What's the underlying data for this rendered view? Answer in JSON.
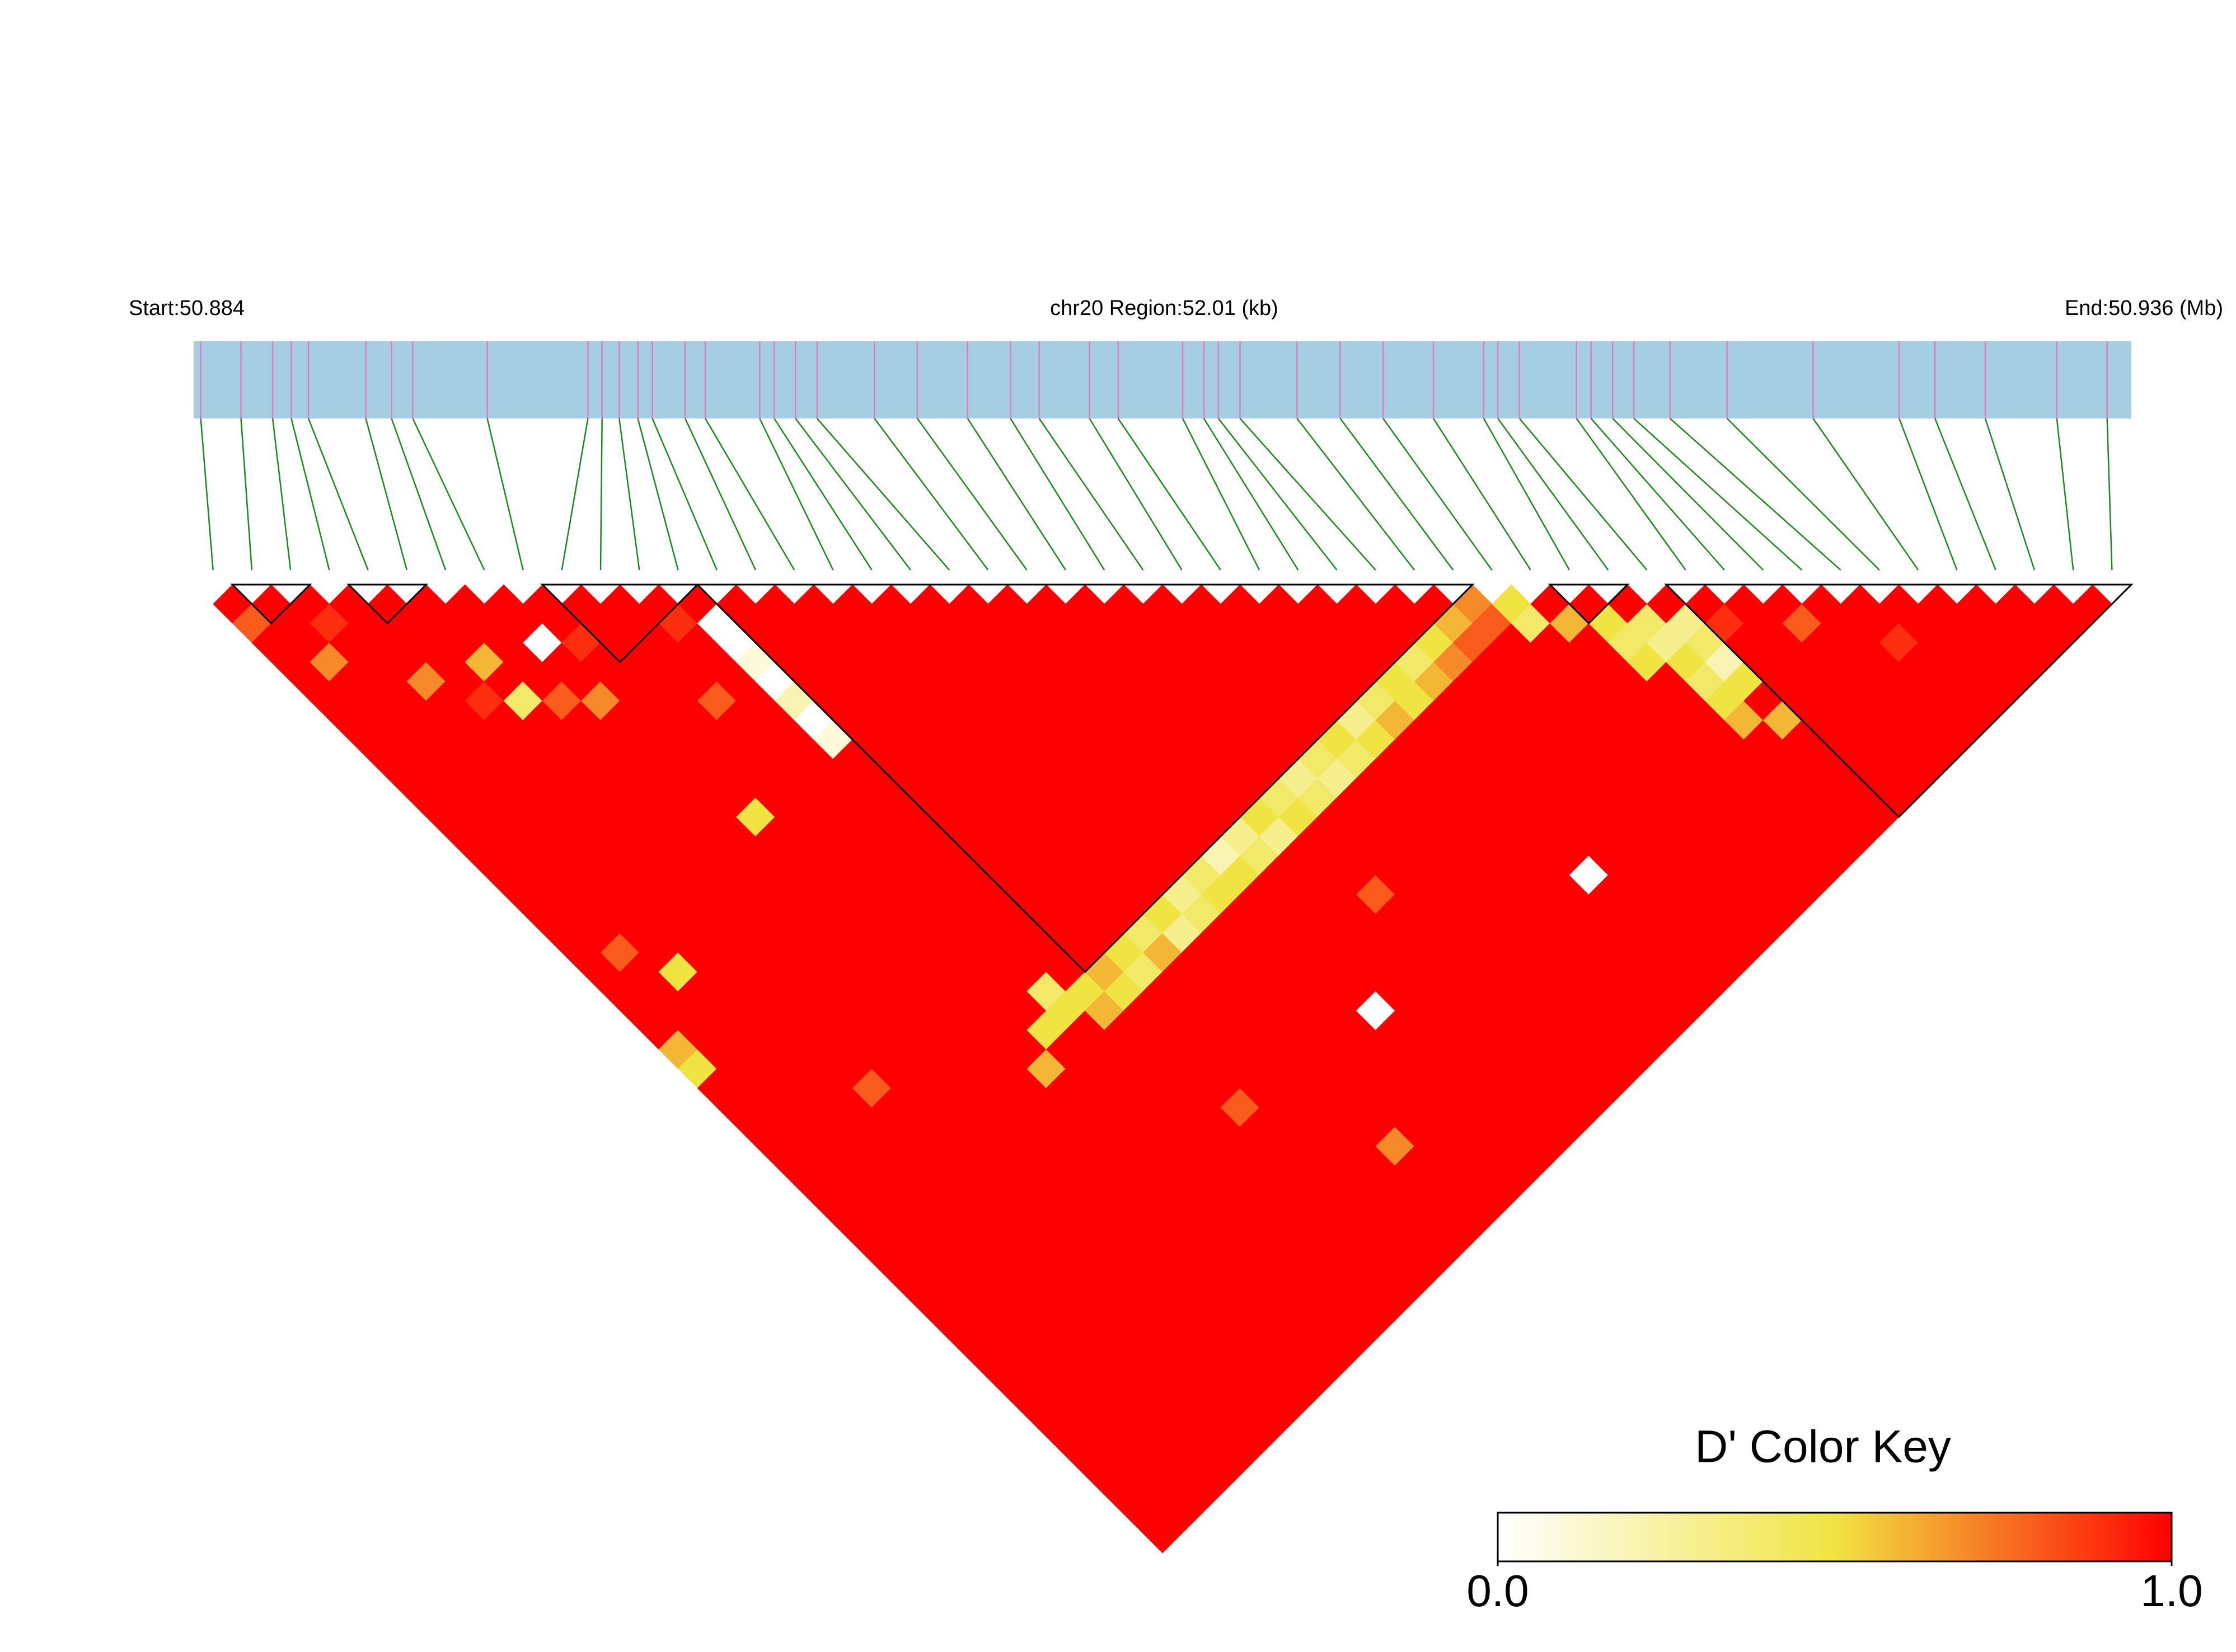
{
  "chart_data": {
    "type": "ld_heatmap",
    "start_label": "Start:50.884",
    "region_label": "chr20 Region:52.01 (kb)",
    "end_label": "End:50.936 (Mb)",
    "xlim": [
      50.884,
      50.936
    ],
    "positions": [
      50.88419,
      50.88527,
      50.88612,
      50.88662,
      50.88708,
      50.88862,
      50.88931,
      50.88988,
      50.89188,
      50.89458,
      50.89496,
      50.89542,
      50.89592,
      50.89631,
      50.89719,
      50.89773,
      50.89919,
      50.89958,
      50.90015,
      50.90073,
      50.90227,
      50.90342,
      50.90477,
      50.90592,
      50.90669,
      50.90804,
      50.90881,
      50.91054,
      50.91111,
      50.9115,
      50.91208,
      50.91361,
      50.91477,
      50.91592,
      50.91727,
      50.91862,
      50.919,
      50.91958,
      50.92111,
      50.9215,
      50.92208,
      50.92265,
      50.92362,
      50.92515,
      50.92746,
      50.92977,
      50.93073,
      50.93208,
      50.934,
      50.93535
    ],
    "bar_color": "#a6cee3",
    "tick_color": "#e07bc0",
    "connector_color": "#1a8a1a",
    "blocks": [
      [
        1,
        2
      ],
      [
        4,
        5
      ],
      [
        9,
        12
      ],
      [
        13,
        32
      ],
      [
        35,
        36
      ],
      [
        38,
        49
      ]
    ],
    "dprime": [
      [
        1,
        0.8,
        1,
        1,
        1,
        1,
        1,
        1,
        1,
        1,
        1,
        1,
        1,
        1,
        1,
        1,
        1,
        1,
        1,
        1,
        1,
        1,
        1,
        0.6,
        0.5,
        1,
        1,
        1,
        1,
        1,
        1,
        1,
        1,
        1,
        1,
        1,
        1,
        1,
        1,
        1,
        1,
        1,
        1,
        1,
        1,
        1,
        1,
        1,
        1
      ],
      [
        1,
        1,
        1,
        0.7,
        1,
        1,
        1,
        1,
        1,
        1,
        1,
        1,
        1,
        1,
        1,
        1,
        1,
        1,
        0.8,
        1,
        1,
        1,
        1,
        1,
        1,
        1,
        1,
        1,
        1,
        1,
        1,
        1,
        1,
        1,
        1,
        1,
        1,
        1,
        1,
        1,
        1,
        1,
        1,
        1,
        1,
        1,
        1,
        1
      ],
      [
        1,
        0.9,
        1,
        1,
        1,
        1,
        1,
        1,
        1,
        1,
        1,
        1,
        1,
        1,
        1,
        1,
        1,
        1,
        1,
        0.5,
        1,
        1,
        1,
        1,
        1,
        1,
        1,
        1,
        1,
        1,
        1,
        1,
        1,
        1,
        1,
        1,
        1,
        1,
        1,
        1,
        1,
        1,
        1,
        1,
        1,
        1,
        1
      ],
      [
        1,
        1,
        1,
        1,
        0.7,
        1,
        1,
        1,
        1,
        1,
        1,
        1,
        1,
        1,
        1,
        1,
        1,
        1,
        1,
        1,
        1,
        1,
        1,
        1,
        1,
        1,
        1,
        1,
        1,
        1,
        1,
        1,
        1,
        1,
        1,
        1,
        1,
        1,
        1,
        1,
        1,
        1,
        1,
        1,
        1,
        1
      ],
      [
        1,
        1,
        1,
        1,
        1,
        0.9,
        1,
        1,
        1,
        1,
        1,
        1,
        1,
        1,
        1,
        1,
        1,
        1,
        1,
        1,
        1,
        1,
        1,
        1,
        1,
        0.8,
        1,
        1,
        1,
        1,
        1,
        1,
        1,
        1,
        1,
        1,
        1,
        1,
        1,
        1,
        1,
        1,
        1,
        1,
        1
      ],
      [
        1,
        1,
        1,
        0.6,
        1,
        0.4,
        1,
        1,
        1,
        1,
        1,
        1,
        1,
        1,
        1,
        1,
        1,
        1,
        1,
        1,
        1,
        1,
        1,
        1,
        1,
        1,
        1,
        1,
        1,
        1,
        1,
        1,
        1,
        1,
        1,
        1,
        1,
        1,
        1,
        1,
        1,
        1,
        1,
        1
      ],
      [
        1,
        1,
        1,
        1,
        1,
        0.8,
        1,
        1,
        1,
        1,
        1,
        1,
        1,
        1,
        1,
        1,
        1,
        1,
        1,
        1,
        1,
        1,
        1,
        1,
        1,
        1,
        1,
        1,
        1,
        1,
        1,
        1,
        1,
        1,
        1,
        1,
        1,
        1,
        1,
        1,
        1,
        1,
        1
      ],
      [
        1,
        1,
        0,
        1,
        1,
        0.7,
        1,
        1,
        1,
        1,
        1,
        1,
        1,
        1,
        1,
        1,
        1,
        1,
        1,
        1,
        1,
        1,
        1,
        1,
        1,
        1,
        1,
        1,
        1,
        1,
        1,
        1,
        1,
        1,
        1,
        1,
        1,
        1,
        1,
        1,
        1,
        1
      ],
      [
        1,
        1,
        0.9,
        1,
        1,
        1,
        1,
        1,
        1,
        1,
        1,
        0.5,
        1,
        1,
        1,
        1,
        1,
        1,
        1,
        1,
        1,
        1,
        1,
        1,
        1,
        1,
        1,
        1,
        1,
        1,
        1,
        1,
        1,
        1,
        1,
        1,
        1,
        1,
        1,
        1,
        1
      ],
      [
        1,
        1,
        1,
        1,
        1,
        1,
        1,
        1,
        1,
        1,
        1,
        1,
        1,
        1,
        1,
        1,
        1,
        1,
        1,
        1,
        1,
        1,
        1,
        1,
        0.6,
        1,
        1,
        1,
        1,
        1,
        1,
        1,
        1,
        1,
        1,
        1,
        1,
        1,
        1,
        1
      ],
      [
        1,
        1,
        1,
        1,
        1,
        0.8,
        1,
        1,
        1,
        1,
        1,
        1,
        1,
        1,
        1,
        1,
        1,
        1,
        1,
        1,
        1,
        1,
        0.5,
        1,
        1,
        1,
        1,
        1,
        1,
        1,
        1,
        1,
        1,
        1,
        1,
        1,
        1,
        1,
        1
      ],
      [
        1,
        0.9,
        1,
        1,
        1,
        1,
        1,
        1,
        1,
        1,
        1,
        1,
        1,
        1,
        1,
        1,
        1,
        1,
        1,
        1,
        0.4,
        0.5,
        1,
        1,
        1,
        1,
        1,
        1,
        1,
        1,
        1,
        1,
        1,
        1,
        1,
        1,
        1,
        1
      ],
      [
        1,
        0,
        0,
        0.1,
        0,
        0.2,
        0,
        0.1,
        1,
        1,
        1,
        1,
        1,
        1,
        1,
        1,
        1,
        1,
        1,
        1,
        0.5,
        0.6,
        1,
        1,
        1,
        1,
        1,
        1,
        1,
        1,
        1,
        1,
        1,
        1,
        1,
        1,
        1
      ],
      [
        1,
        1,
        1,
        1,
        1,
        1,
        1,
        1,
        1,
        1,
        1,
        1,
        1,
        1,
        1,
        1,
        1,
        1,
        1,
        0.6,
        0.5,
        1,
        1,
        1,
        1,
        1,
        0.8,
        1,
        1,
        1,
        1,
        1,
        1,
        1,
        1,
        1
      ],
      [
        1,
        1,
        1,
        1,
        1,
        1,
        1,
        1,
        1,
        1,
        1,
        1,
        1,
        1,
        1,
        1,
        1,
        1,
        0.5,
        0.4,
        1,
        1,
        1,
        1,
        1,
        1,
        1,
        1,
        1,
        1,
        1,
        1,
        1,
        1,
        1
      ],
      [
        1,
        1,
        1,
        1,
        1,
        1,
        1,
        1,
        1,
        1,
        1,
        1,
        1,
        1,
        1,
        1,
        1,
        0.4,
        0.6,
        1,
        1,
        1,
        1,
        1,
        1,
        1,
        1,
        1,
        1,
        1,
        1,
        1,
        1,
        1
      ],
      [
        1,
        1,
        1,
        1,
        1,
        1,
        1,
        1,
        1,
        1,
        1,
        1,
        1,
        1,
        1,
        1,
        0.5,
        0.3,
        1,
        1,
        1,
        1,
        1,
        1,
        1,
        1,
        1,
        1,
        0.7,
        1,
        1,
        1,
        1
      ],
      [
        1,
        1,
        1,
        1,
        1,
        1,
        1,
        1,
        1,
        1,
        1,
        1,
        1,
        1,
        1,
        0.3,
        0.4,
        1,
        1,
        1,
        1,
        1,
        1,
        1,
        1,
        1,
        1,
        1,
        1,
        1,
        1,
        1
      ],
      [
        1,
        1,
        1,
        1,
        1,
        1,
        1,
        1,
        1,
        1,
        1,
        1,
        1,
        1,
        0.4,
        0.5,
        1,
        1,
        1,
        1,
        1,
        1,
        1,
        1,
        1,
        1,
        1,
        1,
        1,
        1,
        1
      ],
      [
        1,
        1,
        1,
        1,
        1,
        1,
        1,
        1,
        1,
        1,
        1,
        1,
        1,
        0.2,
        0.5,
        1,
        1,
        1,
        1,
        1,
        1,
        0,
        1,
        1,
        1,
        1,
        1,
        1,
        1,
        1
      ],
      [
        1,
        1,
        1,
        1,
        1,
        1,
        1,
        1,
        1,
        1,
        1,
        1,
        0.3,
        0.4,
        1,
        1,
        1,
        1,
        1,
        1,
        1,
        1,
        1,
        1,
        1,
        1,
        1,
        1,
        1
      ],
      [
        1,
        1,
        1,
        1,
        1,
        1,
        1,
        1,
        1,
        1,
        1,
        0.5,
        0.3,
        1,
        1,
        1,
        1,
        1,
        1,
        1,
        1,
        1,
        1,
        1,
        1,
        1,
        1,
        1
      ],
      [
        1,
        1,
        1,
        1,
        1,
        1,
        1,
        1,
        1,
        1,
        0.4,
        0.5,
        1,
        1,
        1,
        0.8,
        1,
        1,
        1,
        1,
        1,
        1,
        1,
        1,
        1,
        1,
        1
      ],
      [
        1,
        1,
        1,
        1,
        1,
        1,
        1,
        1,
        1,
        0.3,
        0.4,
        1,
        1,
        1,
        1,
        1,
        1,
        1,
        1,
        1,
        1,
        1,
        1,
        1,
        1,
        1
      ],
      [
        1,
        1,
        1,
        1,
        1,
        1,
        1,
        1,
        0.4,
        0.3,
        1,
        1,
        1,
        1,
        1,
        1,
        1,
        1,
        1,
        1,
        1,
        1,
        1,
        1,
        1
      ],
      [
        1,
        1,
        1,
        1,
        1,
        1,
        1,
        0.5,
        0.4,
        1,
        1,
        1,
        1,
        1,
        1,
        1,
        1,
        1,
        1,
        1,
        1,
        1,
        1,
        1
      ],
      [
        1,
        1,
        1,
        1,
        1,
        1,
        0.3,
        0.5,
        1,
        1,
        1,
        1,
        1,
        1,
        1,
        1,
        1,
        1,
        1,
        1,
        1,
        1,
        1
      ],
      [
        1,
        1,
        1,
        1,
        1,
        0.4,
        0.6,
        1,
        1,
        1,
        1,
        1,
        1,
        1,
        1,
        1,
        1,
        1,
        1,
        1,
        1,
        1
      ],
      [
        1,
        1,
        1,
        1,
        0.5,
        0.5,
        1,
        1,
        1,
        1,
        1,
        1,
        1,
        1,
        0,
        1,
        1,
        1,
        1,
        1,
        1
      ],
      [
        1,
        1,
        1,
        0.4,
        0.6,
        1,
        1,
        1,
        1,
        1,
        1,
        1,
        1,
        1,
        1,
        1,
        1,
        1,
        1,
        1
      ],
      [
        1,
        1,
        0.5,
        0.7,
        1,
        1,
        1,
        1,
        1,
        1,
        1,
        1,
        1,
        1,
        1,
        1,
        1,
        1,
        1
      ],
      [
        1,
        0.6,
        0.8,
        1,
        1,
        1,
        1,
        1,
        1,
        1,
        1,
        1,
        1,
        1,
        1,
        1,
        1,
        1
      ],
      [
        0.7,
        0.8,
        1,
        1,
        1,
        1,
        1,
        1,
        1,
        1,
        1,
        1,
        1,
        1,
        1,
        1,
        1
      ],
      [
        0.5,
        0.4,
        1,
        1,
        1,
        1,
        1,
        1,
        1,
        1,
        1,
        1,
        1,
        1,
        1,
        1
      ],
      [
        1,
        0.6,
        1,
        1,
        1,
        1,
        1,
        1,
        1,
        1,
        1,
        1,
        1,
        1,
        1
      ],
      [
        1,
        0.5,
        0.4,
        0.5,
        1,
        1,
        1,
        1,
        1,
        1,
        1,
        1,
        1,
        1
      ],
      [
        1,
        0.4,
        0.3,
        0.5,
        0.4,
        0.5,
        0.6,
        1,
        1,
        1,
        1,
        1,
        1
      ],
      [
        1,
        0.3,
        0.4,
        0.2,
        0.5,
        1,
        0.6,
        1,
        1,
        1,
        1,
        1
      ],
      [
        1,
        0.9,
        1,
        1,
        1,
        1,
        1,
        1,
        1,
        1,
        1
      ],
      [
        1,
        1,
        1,
        1,
        1,
        1,
        1,
        1,
        1,
        1
      ],
      [
        1,
        0.8,
        1,
        1,
        1,
        1,
        1,
        1,
        1
      ],
      [
        1,
        1,
        1,
        1,
        1,
        1,
        1,
        1
      ],
      [
        1,
        1,
        0.9,
        1,
        1,
        1,
        1
      ],
      [
        1,
        1,
        1,
        1,
        1,
        1
      ],
      [
        1,
        1,
        1,
        1,
        1
      ],
      [
        1,
        1,
        1,
        1
      ],
      [
        1,
        1,
        1
      ],
      [
        1,
        1
      ],
      [
        1
      ]
    ],
    "color_key": {
      "title": "D' Color Key",
      "clim": [
        0,
        1
      ],
      "ticks": [
        {
          "value": 0,
          "label": "0.0"
        },
        {
          "value": 1,
          "label": "1.0"
        }
      ],
      "colormap": [
        "#ffffff",
        "#f0e442",
        "#ff0000"
      ]
    }
  }
}
